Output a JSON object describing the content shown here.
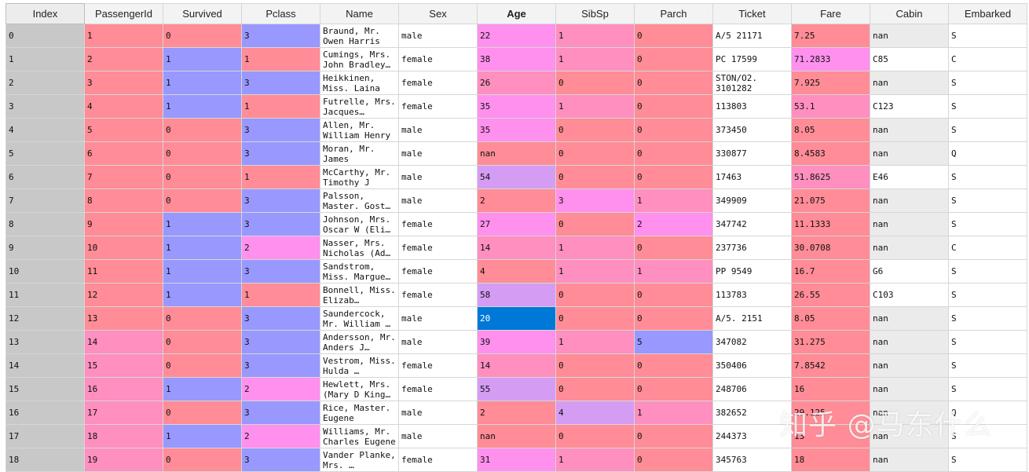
{
  "columns": [
    {
      "key": "index",
      "label": "Index",
      "width": 100
    },
    {
      "key": "passengerid",
      "label": "PassengerId",
      "width": 100
    },
    {
      "key": "survived",
      "label": "Survived",
      "width": 100
    },
    {
      "key": "pclass",
      "label": "Pclass",
      "width": 100
    },
    {
      "key": "name",
      "label": "Name",
      "width": 100
    },
    {
      "key": "sex",
      "label": "Sex",
      "width": 100
    },
    {
      "key": "age",
      "label": "Age",
      "width": 100,
      "sorted": true
    },
    {
      "key": "sibsp",
      "label": "SibSp",
      "width": 100
    },
    {
      "key": "parch",
      "label": "Parch",
      "width": 100
    },
    {
      "key": "ticket",
      "label": "Ticket",
      "width": 100
    },
    {
      "key": "fare",
      "label": "Fare",
      "width": 100
    },
    {
      "key": "cabin",
      "label": "Cabin",
      "width": 100
    },
    {
      "key": "embarked",
      "label": "Embarked",
      "width": 100
    }
  ],
  "colors": {
    "red": "#ff8c96",
    "pink": "#ff8fbf",
    "magenta": "#ff90ee",
    "violet": "#d59cf4",
    "blue": "#9898ff",
    "lightred": "#ff9ba8",
    "selected": "#0078d7"
  },
  "selected_cell": {
    "row": 12,
    "column": "age"
  },
  "rows": [
    {
      "index": "0",
      "passengerid": "1",
      "survived": "0",
      "pclass": "3",
      "name": "Braund, Mr. Owen Harris",
      "sex": "male",
      "age": "22",
      "sibsp": "1",
      "parch": "0",
      "ticket": "A/5 21171",
      "fare": "7.25",
      "cabin": "nan",
      "embarked": "S"
    },
    {
      "index": "1",
      "passengerid": "2",
      "survived": "1",
      "pclass": "1",
      "name": "Cumings, Mrs. John Bradley…",
      "sex": "female",
      "age": "38",
      "sibsp": "1",
      "parch": "0",
      "ticket": "PC 17599",
      "fare": "71.2833",
      "cabin": "C85",
      "embarked": "C"
    },
    {
      "index": "2",
      "passengerid": "3",
      "survived": "1",
      "pclass": "3",
      "name": "Heikkinen, Miss. Laina",
      "sex": "female",
      "age": "26",
      "sibsp": "0",
      "parch": "0",
      "ticket": "STON/O2. 3101282",
      "fare": "7.925",
      "cabin": "nan",
      "embarked": "S"
    },
    {
      "index": "3",
      "passengerid": "4",
      "survived": "1",
      "pclass": "1",
      "name": "Futrelle, Mrs. Jacques…",
      "sex": "female",
      "age": "35",
      "sibsp": "1",
      "parch": "0",
      "ticket": "113803",
      "fare": "53.1",
      "cabin": "C123",
      "embarked": "S"
    },
    {
      "index": "4",
      "passengerid": "5",
      "survived": "0",
      "pclass": "3",
      "name": "Allen, Mr. William Henry",
      "sex": "male",
      "age": "35",
      "sibsp": "0",
      "parch": "0",
      "ticket": "373450",
      "fare": "8.05",
      "cabin": "nan",
      "embarked": "S"
    },
    {
      "index": "5",
      "passengerid": "6",
      "survived": "0",
      "pclass": "3",
      "name": "Moran, Mr. James",
      "sex": "male",
      "age": "nan",
      "sibsp": "0",
      "parch": "0",
      "ticket": "330877",
      "fare": "8.4583",
      "cabin": "nan",
      "embarked": "Q"
    },
    {
      "index": "6",
      "passengerid": "7",
      "survived": "0",
      "pclass": "1",
      "name": "McCarthy, Mr. Timothy J",
      "sex": "male",
      "age": "54",
      "sibsp": "0",
      "parch": "0",
      "ticket": "17463",
      "fare": "51.8625",
      "cabin": "E46",
      "embarked": "S"
    },
    {
      "index": "7",
      "passengerid": "8",
      "survived": "0",
      "pclass": "3",
      "name": "Palsson, Master. Gost…",
      "sex": "male",
      "age": "2",
      "sibsp": "3",
      "parch": "1",
      "ticket": "349909",
      "fare": "21.075",
      "cabin": "nan",
      "embarked": "S"
    },
    {
      "index": "8",
      "passengerid": "9",
      "survived": "1",
      "pclass": "3",
      "name": "Johnson, Mrs. Oscar W (Eli…",
      "sex": "female",
      "age": "27",
      "sibsp": "0",
      "parch": "2",
      "ticket": "347742",
      "fare": "11.1333",
      "cabin": "nan",
      "embarked": "S"
    },
    {
      "index": "9",
      "passengerid": "10",
      "survived": "1",
      "pclass": "2",
      "name": "Nasser, Mrs. Nicholas (Ad…",
      "sex": "female",
      "age": "14",
      "sibsp": "1",
      "parch": "0",
      "ticket": "237736",
      "fare": "30.0708",
      "cabin": "nan",
      "embarked": "C"
    },
    {
      "index": "10",
      "passengerid": "11",
      "survived": "1",
      "pclass": "3",
      "name": "Sandstrom, Miss. Margue…",
      "sex": "female",
      "age": "4",
      "sibsp": "1",
      "parch": "1",
      "ticket": "PP 9549",
      "fare": "16.7",
      "cabin": "G6",
      "embarked": "S"
    },
    {
      "index": "11",
      "passengerid": "12",
      "survived": "1",
      "pclass": "1",
      "name": "Bonnell, Miss. Elizab…",
      "sex": "female",
      "age": "58",
      "sibsp": "0",
      "parch": "0",
      "ticket": "113783",
      "fare": "26.55",
      "cabin": "C103",
      "embarked": "S"
    },
    {
      "index": "12",
      "passengerid": "13",
      "survived": "0",
      "pclass": "3",
      "name": "Saundercock, Mr. William …",
      "sex": "male",
      "age": "20",
      "sibsp": "0",
      "parch": "0",
      "ticket": "A/5. 2151",
      "fare": "8.05",
      "cabin": "nan",
      "embarked": "S"
    },
    {
      "index": "13",
      "passengerid": "14",
      "survived": "0",
      "pclass": "3",
      "name": "Andersson, Mr. Anders J…",
      "sex": "male",
      "age": "39",
      "sibsp": "1",
      "parch": "5",
      "ticket": "347082",
      "fare": "31.275",
      "cabin": "nan",
      "embarked": "S"
    },
    {
      "index": "14",
      "passengerid": "15",
      "survived": "0",
      "pclass": "3",
      "name": "Vestrom, Miss. Hulda …",
      "sex": "female",
      "age": "14",
      "sibsp": "0",
      "parch": "0",
      "ticket": "350406",
      "fare": "7.8542",
      "cabin": "nan",
      "embarked": "S"
    },
    {
      "index": "15",
      "passengerid": "16",
      "survived": "1",
      "pclass": "2",
      "name": "Hewlett, Mrs. (Mary D King…",
      "sex": "female",
      "age": "55",
      "sibsp": "0",
      "parch": "0",
      "ticket": "248706",
      "fare": "16",
      "cabin": "nan",
      "embarked": "S"
    },
    {
      "index": "16",
      "passengerid": "17",
      "survived": "0",
      "pclass": "3",
      "name": "Rice, Master. Eugene",
      "sex": "male",
      "age": "2",
      "sibsp": "4",
      "parch": "1",
      "ticket": "382652",
      "fare": "29.125",
      "cabin": "nan",
      "embarked": "Q"
    },
    {
      "index": "17",
      "passengerid": "18",
      "survived": "1",
      "pclass": "2",
      "name": "Williams, Mr. Charles Eugene",
      "sex": "male",
      "age": "nan",
      "sibsp": "0",
      "parch": "0",
      "ticket": "244373",
      "fare": "13",
      "cabin": "nan",
      "embarked": "S"
    },
    {
      "index": "18",
      "passengerid": "19",
      "survived": "0",
      "pclass": "3",
      "name": "Vander Planke, Mrs. …",
      "sex": "female",
      "age": "31",
      "sibsp": "1",
      "parch": "0",
      "ticket": "345763",
      "fare": "18",
      "cabin": "nan",
      "embarked": "S"
    }
  ],
  "cell_colors": {
    "passengerid": [
      "red",
      "red",
      "red",
      "red",
      "red",
      "red",
      "red",
      "red",
      "red",
      "red",
      "red",
      "red",
      "red",
      "pink",
      "pink",
      "pink",
      "pink",
      "pink",
      "pink"
    ],
    "survived": [
      "red",
      "blue",
      "blue",
      "blue",
      "red",
      "red",
      "red",
      "red",
      "blue",
      "blue",
      "blue",
      "blue",
      "red",
      "red",
      "red",
      "blue",
      "red",
      "blue",
      "red"
    ],
    "pclass": [
      "blue",
      "red",
      "blue",
      "red",
      "blue",
      "blue",
      "red",
      "blue",
      "blue",
      "magenta",
      "blue",
      "red",
      "blue",
      "blue",
      "blue",
      "magenta",
      "blue",
      "magenta",
      "blue"
    ],
    "age": [
      "magenta",
      "magenta",
      "pink",
      "magenta",
      "magenta",
      "red",
      "violet",
      "red",
      "magenta",
      "pink",
      "red",
      "violet",
      "selected",
      "magenta",
      "pink",
      "violet",
      "red",
      "red",
      "magenta"
    ],
    "sibsp": [
      "pink",
      "pink",
      "red",
      "pink",
      "red",
      "red",
      "red",
      "magenta",
      "red",
      "pink",
      "pink",
      "red",
      "red",
      "pink",
      "red",
      "red",
      "violet",
      "red",
      "pink"
    ],
    "parch": [
      "red",
      "red",
      "red",
      "red",
      "red",
      "red",
      "red",
      "pink",
      "magenta",
      "red",
      "pink",
      "red",
      "red",
      "blue",
      "red",
      "red",
      "pink",
      "red",
      "red"
    ],
    "fare": [
      "red",
      "magenta",
      "red",
      "pink",
      "red",
      "red",
      "pink",
      "red",
      "red",
      "red",
      "red",
      "red",
      "red",
      "red",
      "red",
      "red",
      "red",
      "red",
      "red"
    ]
  },
  "watermark": "知乎 @马东什么"
}
